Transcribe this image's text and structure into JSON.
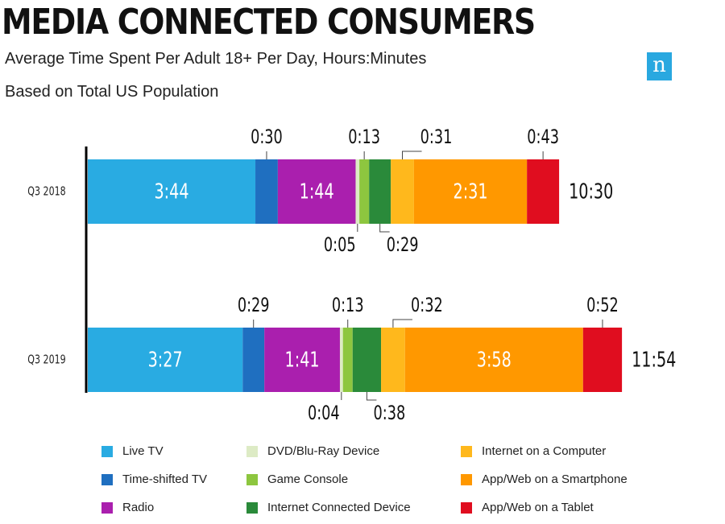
{
  "title": "MEDIA CONNECTED CONSUMERS",
  "subtitle": "Average Time Spent Per Adult 18+ Per Day, Hours:Minutes",
  "subtitle2": "Based on Total US Population",
  "logo_letter": "n",
  "chart_data": {
    "type": "bar",
    "orientation": "horizontal",
    "stacked": true,
    "unit": "hours:minutes",
    "categories": [
      "Q3 2018",
      "Q3 2019"
    ],
    "totals": [
      "10:30",
      "11:54"
    ],
    "series": [
      {
        "name": "Live TV",
        "color": "#29abe2",
        "values": [
          "3:44",
          "3:27"
        ],
        "minutes": [
          224,
          207
        ]
      },
      {
        "name": "Time-shifted TV",
        "color": "#1f6fc0",
        "values": [
          "0:30",
          "0:29"
        ],
        "minutes": [
          30,
          29
        ]
      },
      {
        "name": "Radio",
        "color": "#aa1fae",
        "values": [
          "1:44",
          "1:41"
        ],
        "minutes": [
          104,
          101
        ]
      },
      {
        "name": "DVD/Blu-Ray Device",
        "color": "#ddebc5",
        "values": [
          "0:05",
          "0:04"
        ],
        "minutes": [
          5,
          4
        ]
      },
      {
        "name": "Game Console",
        "color": "#8dc63f",
        "values": [
          "0:13",
          "0:13"
        ],
        "minutes": [
          13,
          13
        ]
      },
      {
        "name": "Internet Connected Device",
        "color": "#2a8a3a",
        "values": [
          "0:29",
          "0:38"
        ],
        "minutes": [
          29,
          38
        ]
      },
      {
        "name": "Internet on a Computer",
        "color": "#ffb81c",
        "values": [
          "0:31",
          "0:32"
        ],
        "minutes": [
          31,
          32
        ]
      },
      {
        "name": "App/Web on a Smartphone",
        "color": "#ff9800",
        "values": [
          "2:31",
          "3:58"
        ],
        "minutes": [
          151,
          238
        ]
      },
      {
        "name": "App/Web on a Tablet",
        "color": "#e00d1f",
        "values": [
          "0:43",
          "0:52"
        ],
        "minutes": [
          43,
          52
        ]
      }
    ],
    "label_placement": [
      [
        "inside",
        "above",
        "inside",
        "below",
        "above",
        "below",
        "above",
        "inside",
        "above"
      ],
      [
        "inside",
        "above",
        "inside",
        "below",
        "above",
        "below",
        "above",
        "inside",
        "above"
      ]
    ]
  }
}
